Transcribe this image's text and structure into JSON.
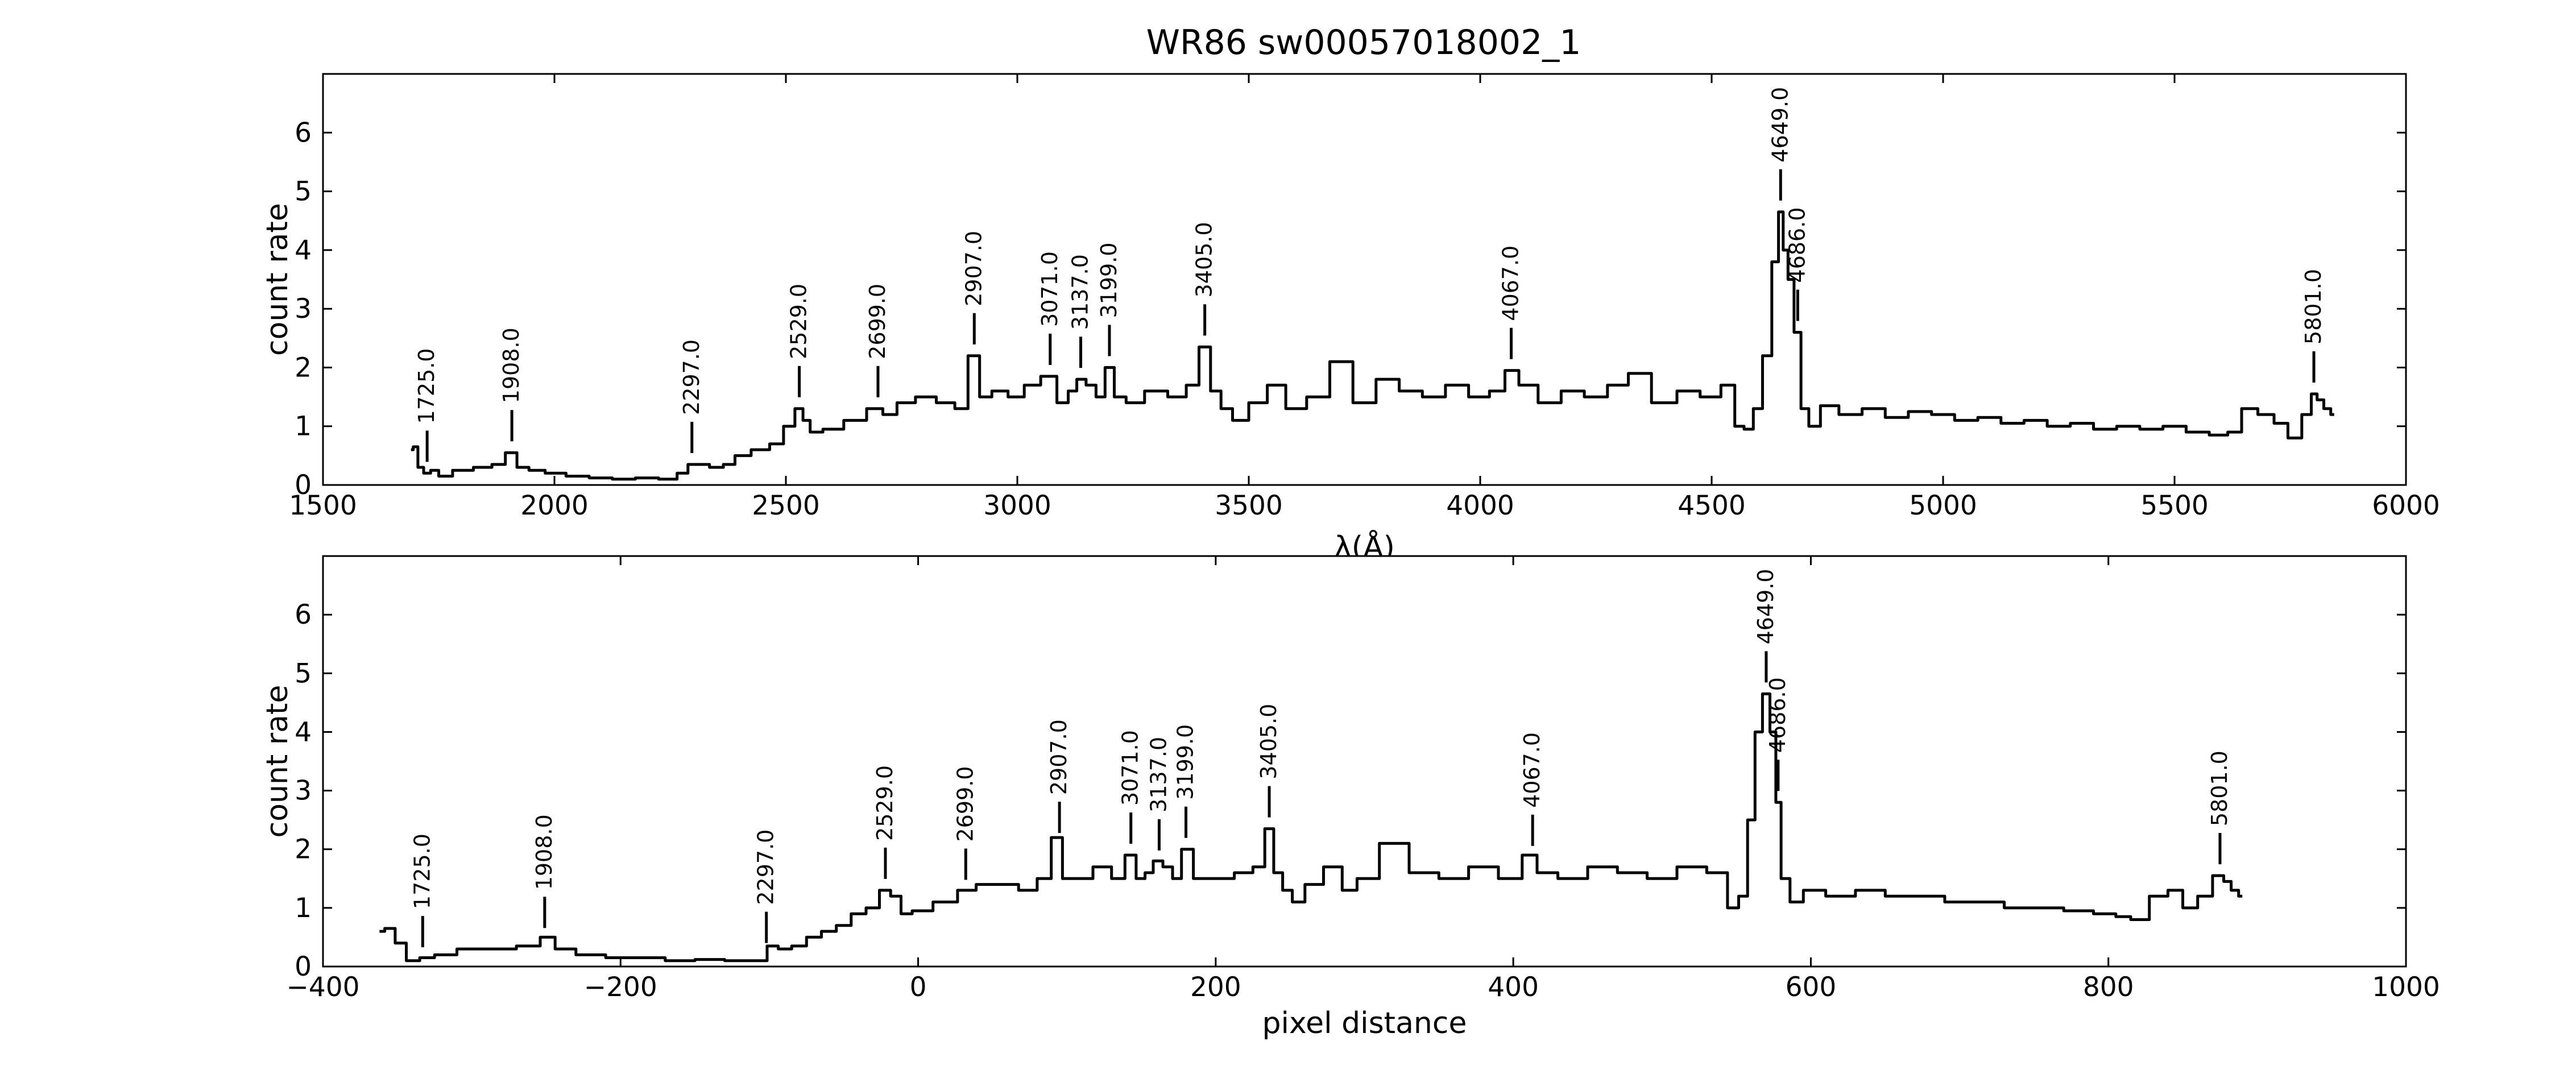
{
  "figure": {
    "title": "WR86  sw00057018002_1"
  },
  "chart_data": [
    {
      "type": "line",
      "xlabel": "λ(Å)",
      "ylabel": "count rate",
      "xlim": [
        1500,
        6000
      ],
      "ylim": [
        0,
        7
      ],
      "x_ticks": [
        "1500",
        "2000",
        "2500",
        "3000",
        "3500",
        "4000",
        "4500",
        "5000",
        "5500",
        "6000"
      ],
      "y_ticks": [
        "0",
        "1",
        "2",
        "3",
        "4",
        "5",
        "6"
      ],
      "grid": false,
      "series": [
        {
          "x": [
            1690,
            1700,
            1710,
            1725,
            1740,
            1760,
            1800,
            1850,
            1880,
            1908,
            1930,
            1960,
            2000,
            2050,
            2100,
            2150,
            2200,
            2250,
            2280,
            2297,
            2320,
            2350,
            2380,
            2400,
            2450,
            2480,
            2510,
            2529,
            2545,
            2560,
            2600,
            2650,
            2699,
            2720,
            2760,
            2800,
            2850,
            2880,
            2907,
            2930,
            2960,
            3000,
            3030,
            3071,
            3100,
            3120,
            3137,
            3160,
            3180,
            3199,
            3220,
            3250,
            3300,
            3350,
            3380,
            3405,
            3430,
            3450,
            3480,
            3520,
            3560,
            3600,
            3650,
            3700,
            3750,
            3800,
            3850,
            3900,
            3950,
            4000,
            4040,
            4067,
            4100,
            4150,
            4200,
            4250,
            4300,
            4340,
            4400,
            4450,
            4500,
            4540,
            4560,
            4580,
            4600,
            4620,
            4640,
            4649,
            4660,
            4670,
            4686,
            4700,
            4720,
            4750,
            4800,
            4850,
            4900,
            4950,
            5000,
            5050,
            5100,
            5150,
            5200,
            5250,
            5300,
            5350,
            5400,
            5450,
            5500,
            5550,
            5600,
            5630,
            5660,
            5700,
            5730,
            5760,
            5790,
            5801,
            5815,
            5830,
            5845
          ],
          "y": [
            0.6,
            0.65,
            0.3,
            0.2,
            0.25,
            0.15,
            0.25,
            0.3,
            0.35,
            0.55,
            0.3,
            0.25,
            0.2,
            0.15,
            0.12,
            0.1,
            0.12,
            0.1,
            0.2,
            0.35,
            0.35,
            0.3,
            0.35,
            0.5,
            0.6,
            0.7,
            1.0,
            1.3,
            1.1,
            0.9,
            0.95,
            1.1,
            1.3,
            1.2,
            1.4,
            1.5,
            1.4,
            1.3,
            2.2,
            1.5,
            1.6,
            1.5,
            1.7,
            1.85,
            1.4,
            1.6,
            1.8,
            1.7,
            1.5,
            2.0,
            1.5,
            1.4,
            1.6,
            1.5,
            1.7,
            2.35,
            1.6,
            1.3,
            1.1,
            1.4,
            1.7,
            1.3,
            1.5,
            2.1,
            1.4,
            1.8,
            1.6,
            1.5,
            1.7,
            1.5,
            1.6,
            1.95,
            1.7,
            1.4,
            1.6,
            1.5,
            1.7,
            1.9,
            1.4,
            1.6,
            1.5,
            1.7,
            1.0,
            0.95,
            1.3,
            2.2,
            3.8,
            4.65,
            4.0,
            3.5,
            2.6,
            1.3,
            1.0,
            1.35,
            1.2,
            1.3,
            1.15,
            1.25,
            1.2,
            1.1,
            1.15,
            1.05,
            1.1,
            1.0,
            1.05,
            0.95,
            1.0,
            0.95,
            1.0,
            0.9,
            0.85,
            0.9,
            1.3,
            1.2,
            1.05,
            0.8,
            1.2,
            1.55,
            1.45,
            1.3,
            1.2
          ]
        }
      ],
      "annotations": [
        {
          "x": 1725,
          "label": "1725.0"
        },
        {
          "x": 1908,
          "label": "1908.0"
        },
        {
          "x": 2297,
          "label": "2297.0"
        },
        {
          "x": 2529,
          "label": "2529.0"
        },
        {
          "x": 2699,
          "label": "2699.0"
        },
        {
          "x": 2907,
          "label": "2907.0"
        },
        {
          "x": 3071,
          "label": "3071.0"
        },
        {
          "x": 3137,
          "label": "3137.0"
        },
        {
          "x": 3199,
          "label": "3199.0"
        },
        {
          "x": 3405,
          "label": "3405.0"
        },
        {
          "x": 4067,
          "label": "4067.0"
        },
        {
          "x": 4649,
          "label": "4649.0"
        },
        {
          "x": 4686,
          "label": "4686.0"
        },
        {
          "x": 5801,
          "label": "5801.0"
        }
      ]
    },
    {
      "type": "line",
      "xlabel": "pixel distance",
      "ylabel": "count rate",
      "xlim": [
        -400,
        1000
      ],
      "ylim": [
        0,
        7
      ],
      "x_ticks": [
        "−400",
        "−200",
        "0",
        "200",
        "400",
        "600",
        "800",
        "1000"
      ],
      "y_ticks": [
        "0",
        "1",
        "2",
        "3",
        "4",
        "5",
        "6"
      ],
      "grid": false,
      "series": [
        {
          "x": [
            -362,
            -355,
            -348,
            -340,
            -330,
            -320,
            -300,
            -280,
            -260,
            -248,
            -240,
            -220,
            -200,
            -180,
            -160,
            -140,
            -120,
            -105,
            -98,
            -90,
            -80,
            -70,
            -60,
            -50,
            -40,
            -30,
            -22,
            -15,
            -8,
            0,
            20,
            33,
            45,
            60,
            75,
            85,
            94,
            100,
            110,
            125,
            135,
            143,
            150,
            155,
            161,
            168,
            174,
            180,
            190,
            205,
            220,
            230,
            236,
            242,
            248,
            255,
            265,
            280,
            290,
            300,
            320,
            340,
            360,
            380,
            400,
            412,
            420,
            440,
            460,
            480,
            500,
            520,
            540,
            548,
            555,
            560,
            565,
            570,
            575,
            578,
            582,
            590,
            600,
            620,
            640,
            660,
            680,
            700,
            720,
            740,
            760,
            780,
            800,
            810,
            820,
            835,
            845,
            855,
            865,
            875,
            880,
            885,
            890
          ],
          "y": [
            0.6,
            0.65,
            0.4,
            0.1,
            0.15,
            0.2,
            0.3,
            0.3,
            0.35,
            0.5,
            0.3,
            0.2,
            0.15,
            0.15,
            0.1,
            0.12,
            0.1,
            0.1,
            0.35,
            0.3,
            0.35,
            0.5,
            0.6,
            0.7,
            0.9,
            1.0,
            1.3,
            1.2,
            0.9,
            0.95,
            1.1,
            1.3,
            1.4,
            1.4,
            1.3,
            1.5,
            2.2,
            1.5,
            1.5,
            1.7,
            1.5,
            1.9,
            1.5,
            1.6,
            1.8,
            1.7,
            1.5,
            2.0,
            1.5,
            1.5,
            1.6,
            1.7,
            2.35,
            1.6,
            1.3,
            1.1,
            1.4,
            1.7,
            1.3,
            1.5,
            2.1,
            1.6,
            1.5,
            1.7,
            1.5,
            1.9,
            1.6,
            1.5,
            1.7,
            1.6,
            1.5,
            1.7,
            1.6,
            1.0,
            1.2,
            2.5,
            4.0,
            4.65,
            4.0,
            2.8,
            1.5,
            1.1,
            1.3,
            1.2,
            1.3,
            1.2,
            1.2,
            1.1,
            1.1,
            1.0,
            1.0,
            0.95,
            0.9,
            0.85,
            0.8,
            1.2,
            1.3,
            1.0,
            1.2,
            1.55,
            1.45,
            1.3,
            1.2
          ]
        }
      ],
      "annotations": [
        {
          "x": -333,
          "label": "1725.0"
        },
        {
          "x": -251,
          "label": "1908.0"
        },
        {
          "x": -102,
          "label": "2297.0"
        },
        {
          "x": -22,
          "label": "2529.0"
        },
        {
          "x": 32,
          "label": "2699.0"
        },
        {
          "x": 95,
          "label": "2907.0"
        },
        {
          "x": 143,
          "label": "3071.0"
        },
        {
          "x": 162,
          "label": "3137.0"
        },
        {
          "x": 180,
          "label": "3199.0"
        },
        {
          "x": 236,
          "label": "3405.0"
        },
        {
          "x": 413,
          "label": "4067.0"
        },
        {
          "x": 570,
          "label": "4649.0"
        },
        {
          "x": 578,
          "label": "4686.0"
        },
        {
          "x": 875,
          "label": "5801.0"
        }
      ]
    }
  ]
}
